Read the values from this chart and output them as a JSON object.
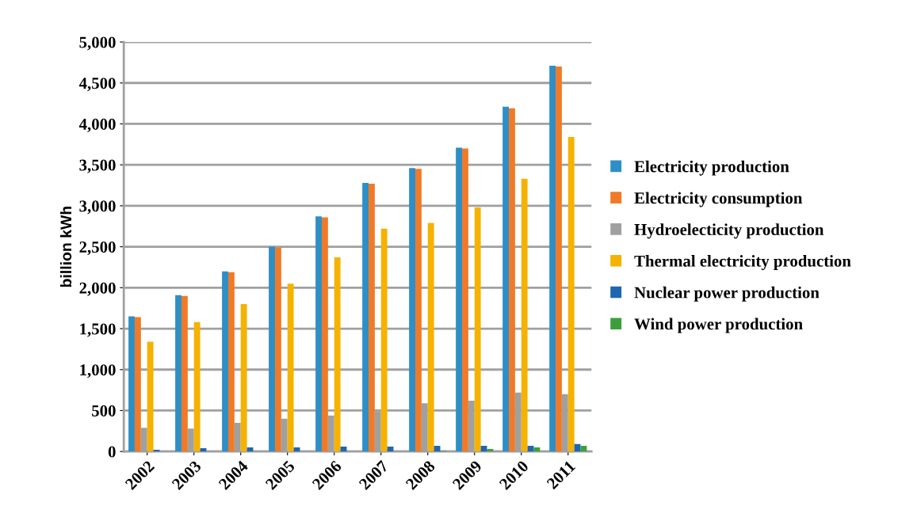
{
  "chart_data": {
    "type": "bar",
    "ylabel": "billion kWh",
    "categories": [
      "2002",
      "2003",
      "2004",
      "2005",
      "2006",
      "2007",
      "2008",
      "2009",
      "2010",
      "2011"
    ],
    "series": [
      {
        "name": "Electricity production",
        "color": "#2e8fc6",
        "values": [
          1650,
          1910,
          2200,
          2500,
          2870,
          3280,
          3460,
          3710,
          4210,
          4710
        ]
      },
      {
        "name": "Electricity consumption",
        "color": "#f07a28",
        "values": [
          1640,
          1900,
          2190,
          2490,
          2860,
          3270,
          3450,
          3700,
          4190,
          4700
        ]
      },
      {
        "name": "Hydroelecticity production",
        "color": "#a0a0a0",
        "values": [
          290,
          280,
          350,
          400,
          440,
          490,
          590,
          620,
          720,
          700
        ]
      },
      {
        "name": "Thermal electricity production",
        "color": "#f6b200",
        "values": [
          1340,
          1580,
          1800,
          2050,
          2370,
          2720,
          2790,
          2980,
          3330,
          3840
        ]
      },
      {
        "name": "Nuclear power production",
        "color": "#1f66b0",
        "values": [
          20,
          40,
          50,
          50,
          60,
          60,
          70,
          70,
          70,
          90
        ]
      },
      {
        "name": "Wind power production",
        "color": "#3c9f3c",
        "values": [
          null,
          null,
          null,
          null,
          null,
          null,
          10,
          30,
          50,
          70
        ]
      }
    ],
    "ylim": [
      0,
      5000
    ],
    "yticks": [
      0,
      500,
      {
        "value": 1000,
        "label": "1,000"
      },
      {
        "value": 1500,
        "label": "1,500"
      },
      {
        "value": 2000,
        "label": "2,000"
      },
      {
        "value": 2500,
        "label": "2,500"
      },
      {
        "value": 3000,
        "label": "3,000"
      },
      {
        "value": 3500,
        "label": "3,500"
      },
      {
        "value": 4000,
        "label": "4,000"
      },
      {
        "value": 4500,
        "label": "4,500"
      },
      {
        "value": 5000,
        "label": "5,000"
      }
    ],
    "grid": "y",
    "legend": "right"
  }
}
